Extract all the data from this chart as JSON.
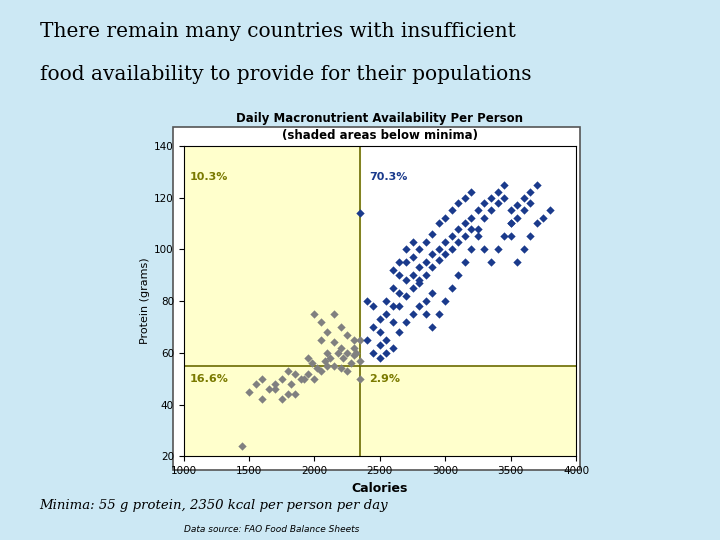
{
  "title_main_line1": "There remain many countries with insufficient",
  "title_main_line2": "food availability to provide for their populations",
  "chart_title_line1": "Daily Macronutrient Availability Per Person",
  "chart_title_line2": "(shaded areas below minima)",
  "xlabel": "Calories",
  "ylabel": "Protein (grams)",
  "data_source": "Data source: FAO Food Balance Sheets",
  "minima_note": "Minima: 55 g protein, 2350 kcal per person per day",
  "x_min_threshold": 2350,
  "y_min_threshold": 55,
  "xlim": [
    1000,
    4000
  ],
  "ylim": [
    20,
    140
  ],
  "xticks": [
    1000,
    1500,
    2000,
    2500,
    3000,
    3500,
    4000
  ],
  "yticks": [
    20,
    40,
    60,
    80,
    100,
    120,
    140
  ],
  "shade_color": "#ffffcc",
  "bg_color": "#cce8f4",
  "plot_bg": "#ffffff",
  "label_10_3": "10.3%",
  "label_70_3": "70.3%",
  "label_16_6": "16.6%",
  "label_2_9": "2.9%",
  "gray_points": [
    [
      1450,
      24
    ],
    [
      1500,
      45
    ],
    [
      1550,
      48
    ],
    [
      1600,
      42
    ],
    [
      1650,
      46
    ],
    [
      1700,
      48
    ],
    [
      1750,
      50
    ],
    [
      1800,
      53
    ],
    [
      1820,
      48
    ],
    [
      1850,
      52
    ],
    [
      1900,
      50
    ],
    [
      1920,
      50
    ],
    [
      1950,
      52
    ],
    [
      1980,
      56
    ],
    [
      2000,
      50
    ],
    [
      2020,
      54
    ],
    [
      2050,
      53
    ],
    [
      2080,
      57
    ],
    [
      2100,
      55
    ],
    [
      2120,
      58
    ],
    [
      2150,
      55
    ],
    [
      2180,
      60
    ],
    [
      2200,
      54
    ],
    [
      2220,
      58
    ],
    [
      2250,
      53
    ],
    [
      2280,
      56
    ],
    [
      2300,
      59
    ],
    [
      2320,
      60
    ],
    [
      2350,
      57
    ],
    [
      2150,
      64
    ],
    [
      2200,
      62
    ],
    [
      2250,
      60
    ],
    [
      2100,
      60
    ],
    [
      2050,
      65
    ],
    [
      2300,
      62
    ],
    [
      2350,
      65
    ],
    [
      1750,
      42
    ],
    [
      1800,
      44
    ],
    [
      2100,
      68
    ],
    [
      2200,
      70
    ],
    [
      2250,
      67
    ],
    [
      2300,
      65
    ],
    [
      1950,
      58
    ],
    [
      2000,
      75
    ],
    [
      2150,
      75
    ],
    [
      2050,
      72
    ],
    [
      1600,
      50
    ],
    [
      1700,
      46
    ],
    [
      1850,
      44
    ],
    [
      2350,
      50
    ]
  ],
  "blue_points": [
    [
      2400,
      65
    ],
    [
      2450,
      70
    ],
    [
      2500,
      73
    ],
    [
      2500,
      68
    ],
    [
      2550,
      75
    ],
    [
      2550,
      80
    ],
    [
      2600,
      78
    ],
    [
      2600,
      85
    ],
    [
      2600,
      72
    ],
    [
      2650,
      83
    ],
    [
      2650,
      90
    ],
    [
      2650,
      78
    ],
    [
      2700,
      88
    ],
    [
      2700,
      95
    ],
    [
      2700,
      82
    ],
    [
      2750,
      90
    ],
    [
      2750,
      97
    ],
    [
      2750,
      85
    ],
    [
      2800,
      93
    ],
    [
      2800,
      100
    ],
    [
      2800,
      87
    ],
    [
      2850,
      95
    ],
    [
      2850,
      103
    ],
    [
      2850,
      90
    ],
    [
      2900,
      98
    ],
    [
      2900,
      106
    ],
    [
      2900,
      93
    ],
    [
      2950,
      100
    ],
    [
      2950,
      110
    ],
    [
      2950,
      96
    ],
    [
      3000,
      103
    ],
    [
      3000,
      112
    ],
    [
      3000,
      98
    ],
    [
      3050,
      105
    ],
    [
      3050,
      115
    ],
    [
      3050,
      100
    ],
    [
      3100,
      108
    ],
    [
      3100,
      118
    ],
    [
      3100,
      103
    ],
    [
      3150,
      110
    ],
    [
      3150,
      120
    ],
    [
      3150,
      105
    ],
    [
      3200,
      112
    ],
    [
      3200,
      122
    ],
    [
      3200,
      108
    ],
    [
      3250,
      115
    ],
    [
      3250,
      108
    ],
    [
      3300,
      118
    ],
    [
      3300,
      112
    ],
    [
      3350,
      120
    ],
    [
      3350,
      115
    ],
    [
      3400,
      122
    ],
    [
      3400,
      118
    ],
    [
      3450,
      125
    ],
    [
      3450,
      120
    ],
    [
      3500,
      115
    ],
    [
      3500,
      110
    ],
    [
      3500,
      105
    ],
    [
      3550,
      117
    ],
    [
      3550,
      112
    ],
    [
      3600,
      120
    ],
    [
      3600,
      115
    ],
    [
      3650,
      122
    ],
    [
      3650,
      118
    ],
    [
      3700,
      125
    ],
    [
      2450,
      60
    ],
    [
      2500,
      63
    ],
    [
      2550,
      65
    ],
    [
      2600,
      62
    ],
    [
      2650,
      68
    ],
    [
      2700,
      72
    ],
    [
      2750,
      75
    ],
    [
      2800,
      78
    ],
    [
      2850,
      80
    ],
    [
      2900,
      83
    ],
    [
      2350,
      114
    ],
    [
      2400,
      80
    ],
    [
      2450,
      78
    ],
    [
      2500,
      58
    ],
    [
      2550,
      60
    ],
    [
      2600,
      92
    ],
    [
      2650,
      95
    ],
    [
      2700,
      100
    ],
    [
      2750,
      103
    ],
    [
      2800,
      88
    ],
    [
      2850,
      75
    ],
    [
      2900,
      70
    ],
    [
      2950,
      75
    ],
    [
      3000,
      80
    ],
    [
      3050,
      85
    ],
    [
      3100,
      90
    ],
    [
      3150,
      95
    ],
    [
      3200,
      100
    ],
    [
      3250,
      105
    ],
    [
      3300,
      100
    ],
    [
      3350,
      95
    ],
    [
      3400,
      100
    ],
    [
      3450,
      105
    ],
    [
      3500,
      110
    ],
    [
      3550,
      95
    ],
    [
      3600,
      100
    ],
    [
      3650,
      105
    ],
    [
      3700,
      110
    ],
    [
      3750,
      112
    ],
    [
      3800,
      115
    ]
  ],
  "gray_color": "#808080",
  "blue_color": "#1a3a8c",
  "marker_size": 18,
  "marker_style": "D"
}
